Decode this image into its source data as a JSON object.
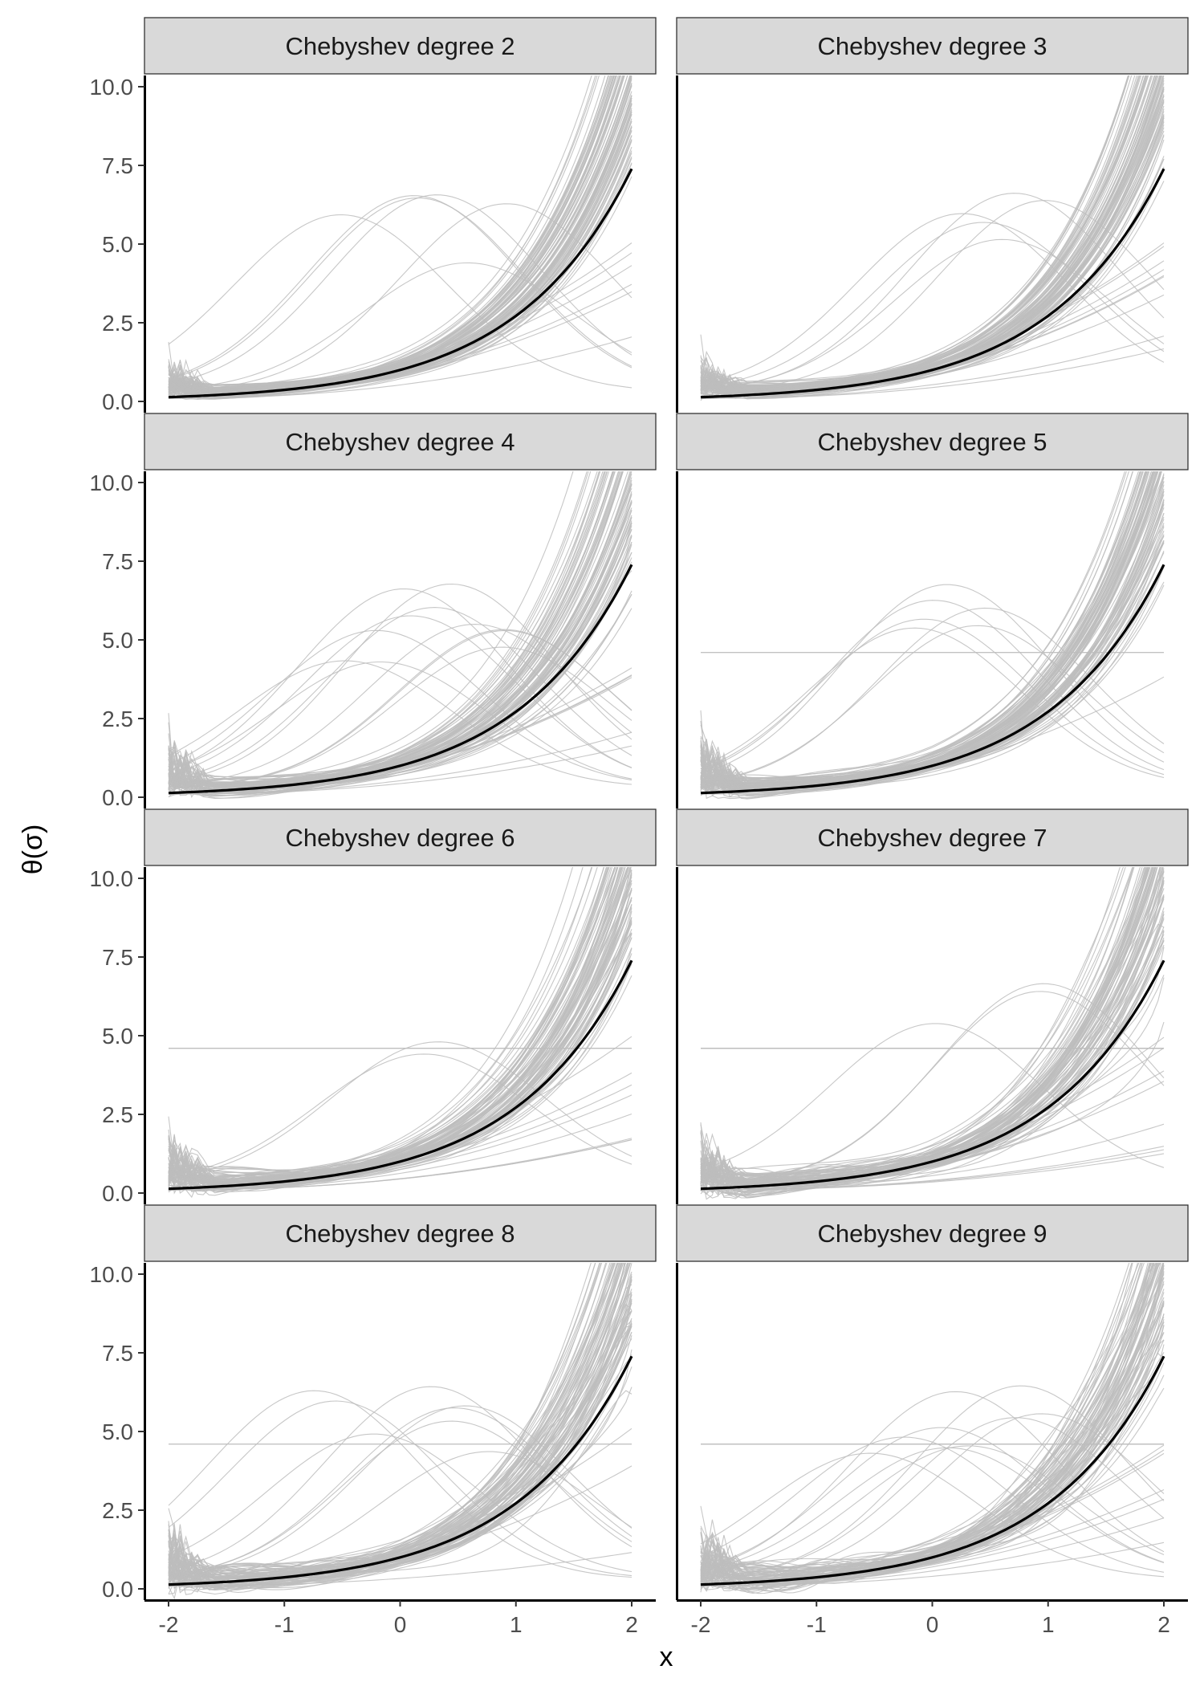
{
  "chart_data": {
    "type": "line",
    "layout": "facet-grid 4 rows x 2 columns",
    "xlabel": "x",
    "ylabel": "θ(σ)",
    "xlim": [
      -2,
      2
    ],
    "ylim": [
      0,
      10
    ],
    "x_ticks": [
      -2,
      -1,
      0,
      1,
      2
    ],
    "y_ticks": [
      "0.0",
      "2.5",
      "5.0",
      "7.5",
      "10.0"
    ],
    "colors": {
      "simulated_curves": "#bdbdbd",
      "true_curve": "#000000",
      "strip_background": "#d9d9d9"
    },
    "true_curve": {
      "description_function": "exp(x)",
      "x": [
        -2,
        -1.5,
        -1,
        -0.5,
        0,
        0.5,
        1,
        1.5,
        2
      ],
      "y": [
        0.14,
        0.22,
        0.37,
        0.61,
        1.0,
        1.65,
        2.72,
        4.48,
        7.39
      ]
    },
    "simulated_curves_per_panel": 100,
    "panels": [
      {
        "strip": "Chebyshev degree 2",
        "degree": 2
      },
      {
        "strip": "Chebyshev degree 3",
        "degree": 3
      },
      {
        "strip": "Chebyshev degree 4",
        "degree": 4
      },
      {
        "strip": "Chebyshev degree 5",
        "degree": 5
      },
      {
        "strip": "Chebyshev degree 6",
        "degree": 6
      },
      {
        "strip": "Chebyshev degree 7",
        "degree": 7
      },
      {
        "strip": "Chebyshev degree 8",
        "degree": 8
      },
      {
        "strip": "Chebyshev degree 9",
        "degree": 9
      }
    ]
  }
}
